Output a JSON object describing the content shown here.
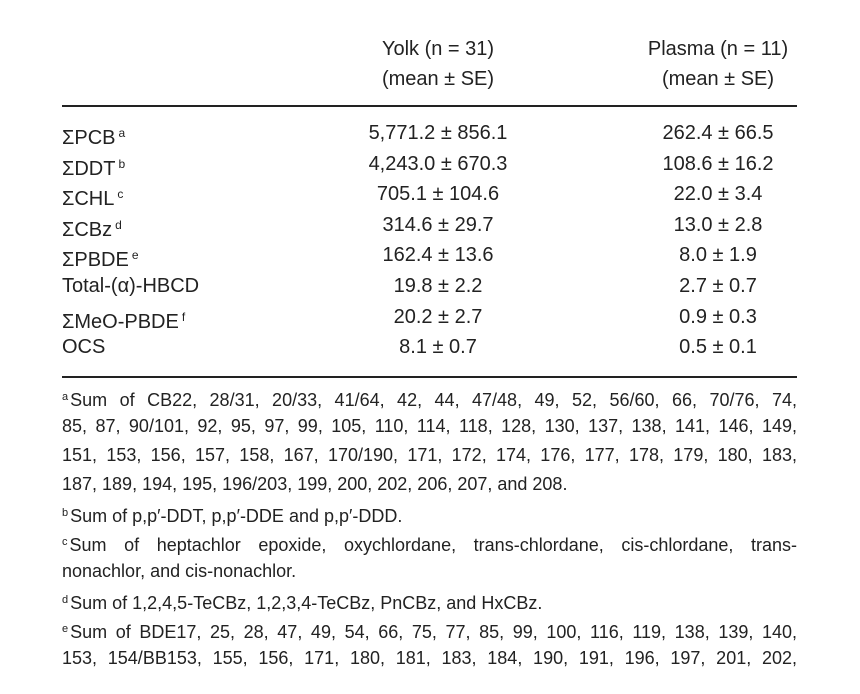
{
  "table": {
    "columns": [
      {
        "title": "Yolk (n = 31)",
        "subtitle": "(mean ± SE)"
      },
      {
        "title": "Plasma (n = 11)",
        "subtitle": "(mean ± SE)"
      }
    ],
    "rows": [
      {
        "label": "ΣPCB",
        "note": "a",
        "cells": [
          "5,771.2 ± 856.1",
          "262.4 ± 66.5"
        ]
      },
      {
        "label": "ΣDDT",
        "note": "b",
        "cells": [
          "4,243.0 ± 670.3",
          "108.6 ± 16.2"
        ]
      },
      {
        "label": "ΣCHL",
        "note": "c",
        "cells": [
          "705.1 ± 104.6",
          "22.0 ± 3.4"
        ]
      },
      {
        "label": "ΣCBz",
        "note": "d",
        "cells": [
          "314.6 ± 29.7",
          "13.0 ± 2.8"
        ]
      },
      {
        "label": "ΣPBDE",
        "note": "e",
        "cells": [
          "162.4 ± 13.6",
          "8.0 ± 1.9"
        ]
      },
      {
        "label": "Total-(α)-HBCD",
        "cells": [
          "19.8 ± 2.2",
          "2.7 ± 0.7"
        ]
      },
      {
        "label": "ΣMeO-PBDE",
        "note": "f",
        "cells": [
          "20.2 ± 2.7",
          "0.9 ± 0.3"
        ]
      },
      {
        "label": "OCS",
        "cells": [
          "8.1 ± 0.7",
          "0.5 ± 0.1"
        ]
      }
    ],
    "footnotes": [
      {
        "marker": "a",
        "lines": [
          "Sum of CB22, 28/31, 20/33, 41/64, 42, 44, 47/48, 49, 52, 56/60, 66, 70/76, 74,",
          "85, 87, 90/101, 92, 95, 97, 99, 105, 110, 114, 118, 128, 130, 137, 138, 141, 146, 149,",
          "151, 153, 156, 157, 158, 167, 170/190, 171, 172, 174, 176, 177, 178, 179, 180, 183,",
          "187, 189, 194, 195, 196/203, 199, 200, 202, 206, 207, and 208."
        ]
      },
      {
        "marker": "b",
        "lines": [
          "Sum of p,p′-DDT, p,p′-DDE and p,p′-DDD."
        ]
      },
      {
        "marker": "c",
        "lines": [
          "Sum of heptachlor epoxide, oxychlordane, trans-chlordane, cis-chlordane, trans-",
          "nonachlor, and cis-nonachlor."
        ]
      },
      {
        "marker": "d",
        "lines": [
          "Sum of 1,2,4,5-TeCBz, 1,2,3,4-TeCBz, PnCBz, and HxCBz."
        ]
      },
      {
        "marker": "e",
        "lines": [
          "Sum of BDE17, 25, 28, 47, 49, 54, 66, 75, 77, 85, 99, 100, 116, 119, 138, 139, 140,",
          "153, 154/BB153, 155, 156, 171, 180, 181, 183, 184, 190, 191, 196, 197, 201, 202,"
        ]
      }
    ]
  }
}
